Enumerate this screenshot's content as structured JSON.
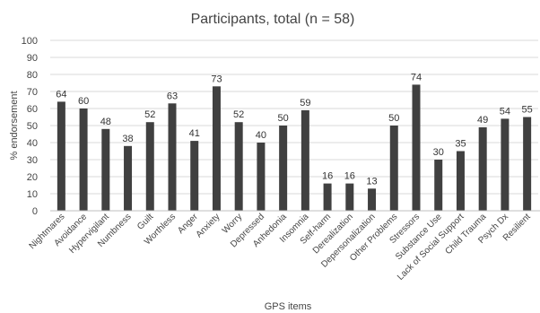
{
  "chart_data": {
    "type": "bar",
    "title": "Participants, total (n = 58)",
    "xlabel": "GPS items",
    "ylabel": "% endorsement",
    "ylim": [
      0,
      100
    ],
    "yticks": [
      0,
      10,
      20,
      30,
      40,
      50,
      60,
      70,
      80,
      90,
      100
    ],
    "grid": true,
    "legend": "none",
    "bar_color": "#404040",
    "categories": [
      "Nightmares",
      "Avoidance",
      "Hypervigilant",
      "Numbness",
      "Guilt",
      "Worthless",
      "Anger",
      "Anxiety",
      "Worry",
      "Depressed",
      "Anhedonia",
      "Insomnia",
      "Self-harm",
      "Derealization",
      "Depersonalization",
      "Other Problems",
      "Stressors",
      "Substance Use",
      "Lack of Social Support",
      "Child Trauma",
      "Psych Dx",
      "Resilient"
    ],
    "values": [
      64,
      60,
      48,
      38,
      52,
      63,
      41,
      73,
      52,
      40,
      50,
      59,
      16,
      16,
      13,
      50,
      74,
      30,
      35,
      49,
      54,
      55
    ]
  }
}
